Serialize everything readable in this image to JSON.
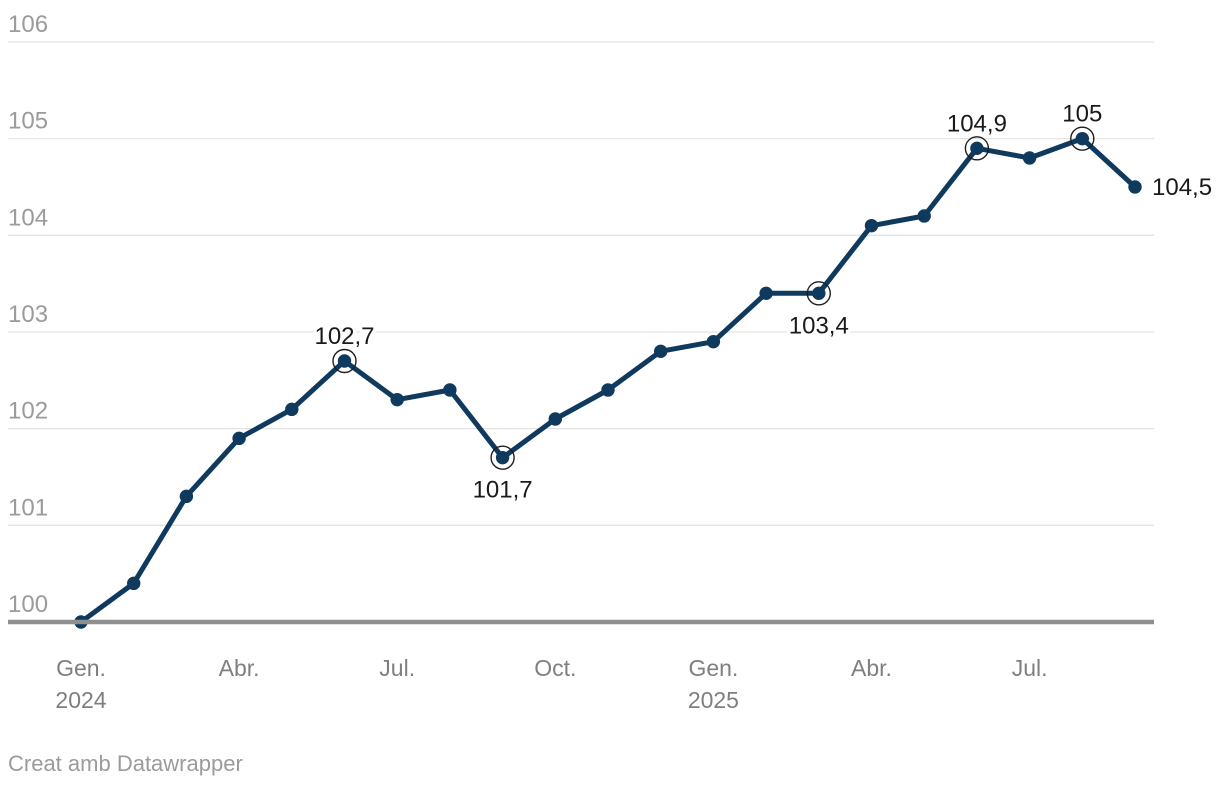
{
  "attribution": {
    "text": "Creat amb Datawrapper"
  },
  "colors": {
    "line": "#0f3a5e",
    "dot": "#0f3a5e",
    "ring": "#1f1f1f",
    "grid": "#e3e3e3",
    "baseline": "#8f8f8f",
    "y_tick_text": "#9b9b9b",
    "x_tick_text": "#7f7f7f",
    "point_label_text": "#1a1a1a",
    "background": "#ffffff"
  },
  "chart_data": {
    "type": "line",
    "title": "",
    "xlabel": "",
    "ylabel": "",
    "x": [
      "2024-01",
      "2024-02",
      "2024-03",
      "2024-04",
      "2024-05",
      "2024-06",
      "2024-07",
      "2024-08",
      "2024-09",
      "2024-10",
      "2024-11",
      "2024-12",
      "2025-01",
      "2025-02",
      "2025-03",
      "2025-04",
      "2025-05",
      "2025-06",
      "2025-07",
      "2025-08",
      "2025-09"
    ],
    "values": [
      100,
      100.4,
      101.3,
      101.9,
      102.2,
      102.7,
      102.3,
      102.4,
      101.7,
      102.1,
      102.4,
      102.8,
      102.9,
      103.4,
      103.4,
      104.1,
      104.2,
      104.9,
      104.8,
      105,
      104.5
    ],
    "y_ticks": [
      100,
      101,
      102,
      103,
      104,
      105,
      106
    ],
    "ylim": [
      99.9,
      106.2
    ],
    "grid": true,
    "legend": false,
    "baseline_value": 100,
    "x_tick_labels": [
      {
        "month_index": 0,
        "label": "Gen.",
        "year": "2024"
      },
      {
        "month_index": 3,
        "label": "Abr."
      },
      {
        "month_index": 6,
        "label": "Jul."
      },
      {
        "month_index": 9,
        "label": "Oct."
      },
      {
        "month_index": 12,
        "label": "Gen.",
        "year": "2025"
      },
      {
        "month_index": 15,
        "label": "Abr."
      },
      {
        "month_index": 18,
        "label": "Jul."
      }
    ],
    "point_labels": [
      {
        "month_index": 5,
        "text": "102,7",
        "position": "above",
        "circled": true
      },
      {
        "month_index": 8,
        "text": "101,7",
        "position": "below",
        "circled": true
      },
      {
        "month_index": 14,
        "text": "103,4",
        "position": "below",
        "circled": true
      },
      {
        "month_index": 17,
        "text": "104,9",
        "position": "above",
        "circled": true
      },
      {
        "month_index": 19,
        "text": "105",
        "position": "above",
        "circled": true
      },
      {
        "month_index": 20,
        "text": "104,5",
        "position": "right",
        "circled": false
      }
    ]
  }
}
